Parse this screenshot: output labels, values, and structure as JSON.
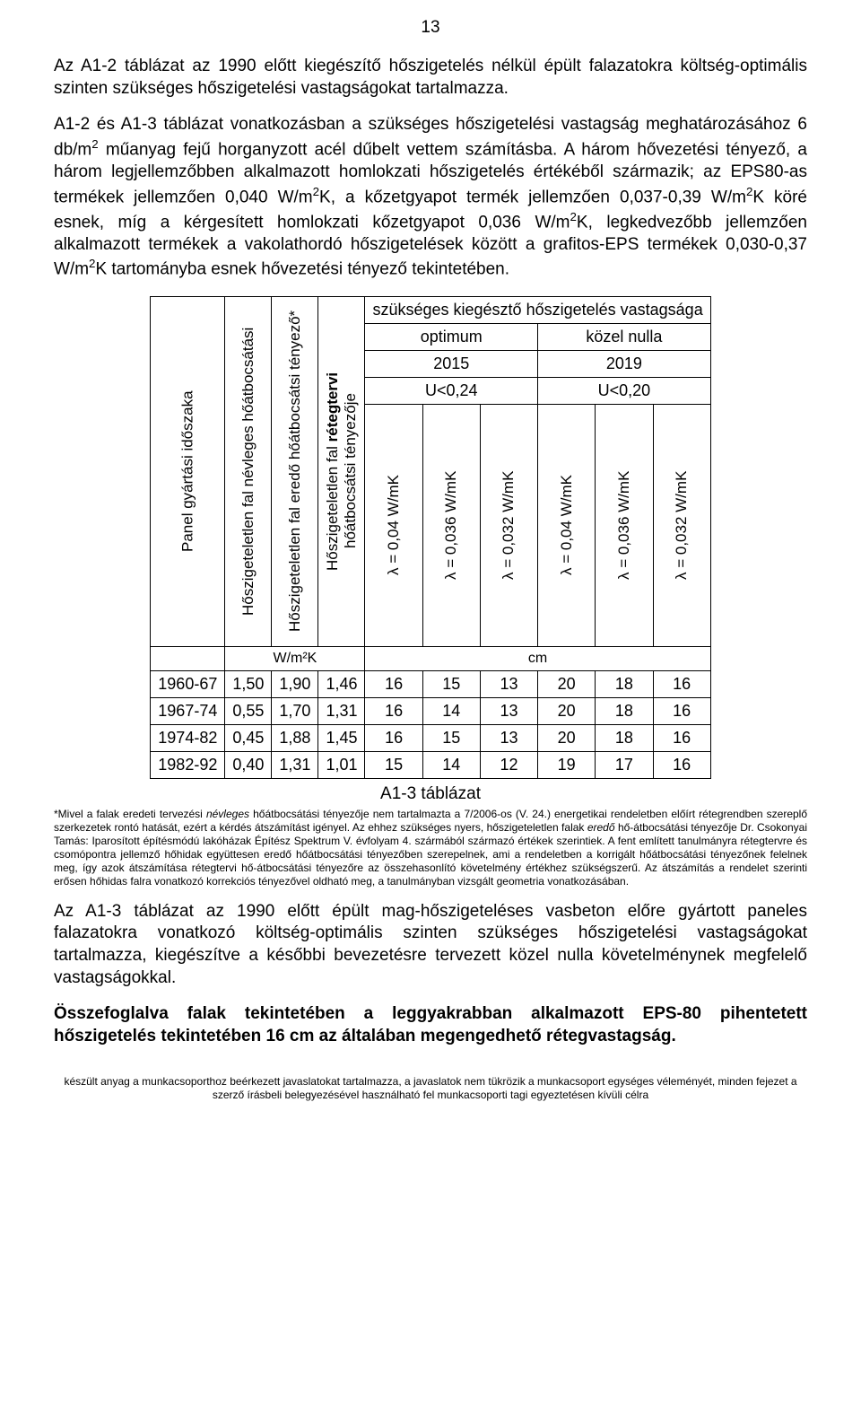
{
  "page_number": "13",
  "para1": "Az A1-2 táblázat az 1990 előtt kiegészítő hőszigetelés nélkül épült falazatokra költség-optimális szinten szükséges hőszigetelési vastagságokat tartalmazza.",
  "para2_html": "A1-2 és A1-3 táblázat vonatkozásban a szükséges hőszigetelési vastagság meghatározásához 6 db/m<sup>2</sup> műanyag fejű horganyzott acél dűbelt vettem számításba. A három hővezetési tényező, a három legjellemzőbben alkalmazott homlokzati hőszigetelés értékéből származik; az EPS80-as termékek jellemzően 0,040 W/m<sup>2</sup>K, a kőzetgyapot termék jellemzően 0,037-0,39 W/m<sup>2</sup>K köré esnek, míg a kérgesített homlokzati kőzetgyapot 0,036 W/m<sup>2</sup>K, legkedvezőbb jellemzően alkalmazott termékek a vakolathordó hőszigetelések között a grafitos-EPS termékek 0,030-0,37 W/m<sup>2</sup>K tartományba esnek hővezetési tényező tekintetében.",
  "table": {
    "col_headers_vert": {
      "c1": "Panel gyártási időszaka",
      "c2": "Hőszigeteletlen fal névleges hőátbocsátási",
      "c3": "Hőszigeteletlen fal eredő hőátbocsátsi tényező*",
      "c4_l1": "Hőszigeteletlen fal",
      "c4_l2": "hőátbocsátsi tényezője",
      "c4_bold": "rétegtervi"
    },
    "group_top": "szükséges kiegésztő hőszigetelés vastagsága",
    "opt": "optimum",
    "nulla": "közel nulla",
    "y2015": "2015",
    "y2019": "2019",
    "u024": "U<0,24",
    "u020": "U<0,20",
    "lam": {
      "a": "λ = 0,04 W/mK",
      "b": "λ = 0,036 W/mK",
      "c": "λ = 0,032 W/mK",
      "d": "λ = 0,04 W/mK",
      "e": "λ = 0,036 W/mK",
      "f": "λ = 0,032 W/mK"
    },
    "unit_wm2k": "W/m²K",
    "unit_cm": "cm",
    "rows": [
      [
        "1960-67",
        "1,50",
        "1,90",
        "1,46",
        "16",
        "15",
        "13",
        "20",
        "18",
        "16"
      ],
      [
        "1967-74",
        "0,55",
        "1,70",
        "1,31",
        "16",
        "14",
        "13",
        "20",
        "18",
        "16"
      ],
      [
        "1974-82",
        "0,45",
        "1,88",
        "1,45",
        "16",
        "15",
        "13",
        "20",
        "18",
        "16"
      ],
      [
        "1982-92",
        "0,40",
        "1,31",
        "1,01",
        "15",
        "14",
        "12",
        "19",
        "17",
        "16"
      ]
    ],
    "caption": "A1-3 táblázat"
  },
  "footnote_html": "*Mivel a falak eredeti tervezési <i>névleges</i> hőátbocsátási tényezője nem tartalmazta a 7/2006-os (V. 24.) energetikai rendeletben előírt rétegrendben szereplő szerkezetek rontó hatását, ezért a kérdés átszámítást igényel. Az ehhez szükséges nyers, hőszigeteletlen falak <i>eredő</i> hő-átbocsátási tényezője Dr. Csokonyai Tamás: Iparosított építésmódú lakóházak Építész Spektrum V. évfolyam 4. szármából származó értékek szerintiek. A fent említett tanulmányra rétegtervre és csomópontra jellemző hőhidak együttesen eredő hőátbocsátási tényezőben szerepelnek, ami a rendeletben a korrigált hőátbocsátási tényezőnek felelnek meg, így azok átszámítása rétegtervi hő-átbocsátási tényezőre az összehasonlító követelmény értékhez szükségszerű. Az átszámítás a rendelet szerinti erősen hőhidas falra vonatkozó korrekciós tényezővel oldható meg, a tanulmányban vizsgált geometria vonatkozásában.",
  "para3": "Az A1-3 táblázat az 1990 előtt épült mag-hőszigeteléses vasbeton előre gyártott paneles falazatokra vonatkozó költség-optimális szinten szükséges hőszigetelési vastagságokat tartalmazza, kiegészítve a későbbi bevezetésre tervezett közel nulla követelménynek megfelelő vastagságokkal.",
  "para4_bold": "Összefoglalva falak tekintetében a leggyakrabban alkalmazott EPS-80 pihentetett hőszigetelés tekintetében 16 cm az általában megengedhető rétegvastagság.",
  "footer": "készült anyag a munkacsoporthoz beérkezett javaslatokat tartalmazza, a javaslatok nem tükrözik a munkacsoport egységes véleményét, minden fejezet a szerző írásbeli belegyezésével használható fel munkacsoporti tagi egyeztetésen kívüli célra",
  "style": {
    "background": "#ffffff",
    "text_color": "#000000",
    "border_color": "#000000",
    "body_fontsize": 19,
    "footnote_fontsize": 12,
    "footer_fontsize": 12
  }
}
